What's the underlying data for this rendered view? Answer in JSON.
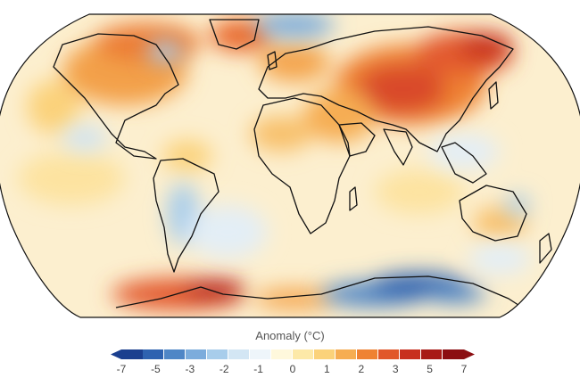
{
  "map": {
    "projection": "robinson",
    "ocean_fill": "#fbebc8",
    "outline_color": "#111111"
  },
  "legend": {
    "title": "Anomaly (°C)",
    "ticks": [
      "-7",
      "-5",
      "-3",
      "-2",
      "-1",
      "0",
      "1",
      "2",
      "3",
      "5",
      "7"
    ],
    "colors": [
      "#1b3f8f",
      "#2e62b0",
      "#4f86c6",
      "#7cacdc",
      "#a8cdeb",
      "#d3e6f4",
      "#eef5fa",
      "#fff8dc",
      "#fde9a8",
      "#fbd27a",
      "#f6ad52",
      "#ef8233",
      "#e1572a",
      "#c8301f",
      "#a81a16",
      "#8c0e12"
    ]
  }
}
